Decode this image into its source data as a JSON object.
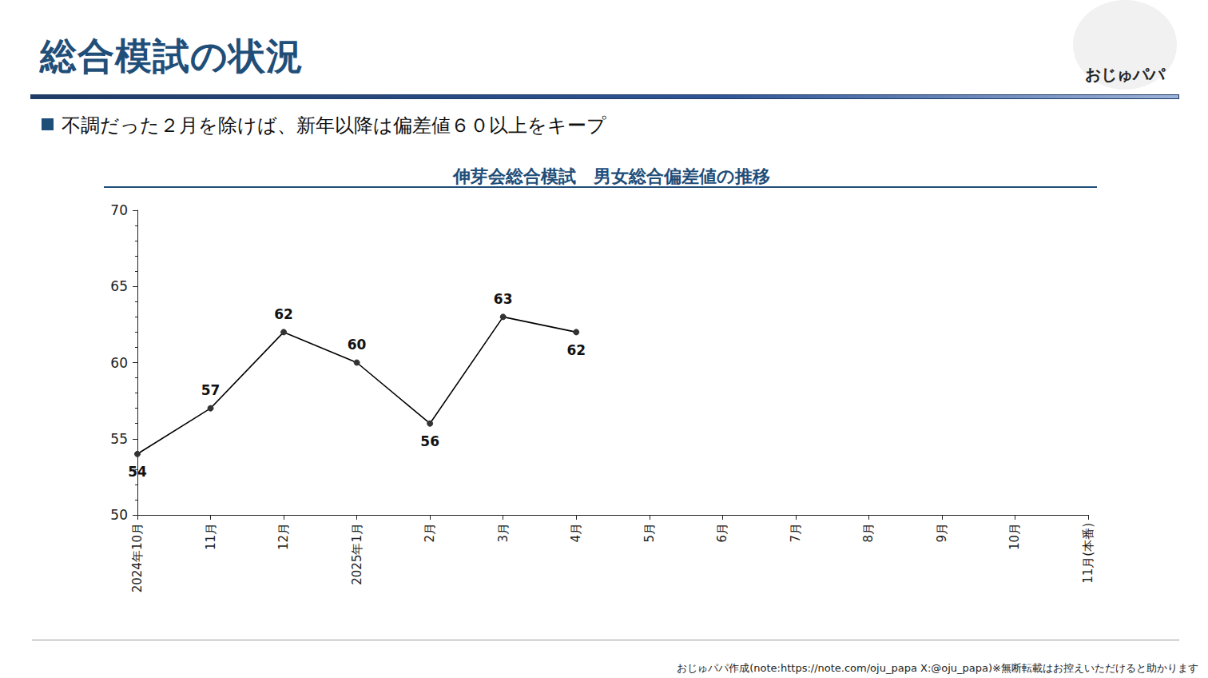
{
  "header": {
    "title": "総合模試の状況",
    "bullet": "不調だった２月を除けば、新年以降は偏差値６０以上をキープ",
    "logo_text": "おじゅパパ"
  },
  "footer": "おじゅパパ作成(note:https://note.com/oju_papa X:@oju_papa)※無断転載はお控えいただけると助かります",
  "chart_data": {
    "type": "line",
    "title": "伸芽会総合模試　男女総合偏差値の推移",
    "categories": [
      "2024年10月",
      "11月",
      "12月",
      "2025年1月",
      "2月",
      "3月",
      "4月",
      "5月",
      "6月",
      "7月",
      "8月",
      "9月",
      "10月",
      "11月(本番)"
    ],
    "values": [
      54,
      57,
      62,
      60,
      56,
      63,
      62,
      null,
      null,
      null,
      null,
      null,
      null,
      null
    ],
    "color": "#000000",
    "marker": "circle",
    "ylim": [
      50,
      70
    ],
    "yticks": [
      50,
      55,
      60,
      65,
      70
    ],
    "grid": false,
    "data_labels": true
  }
}
